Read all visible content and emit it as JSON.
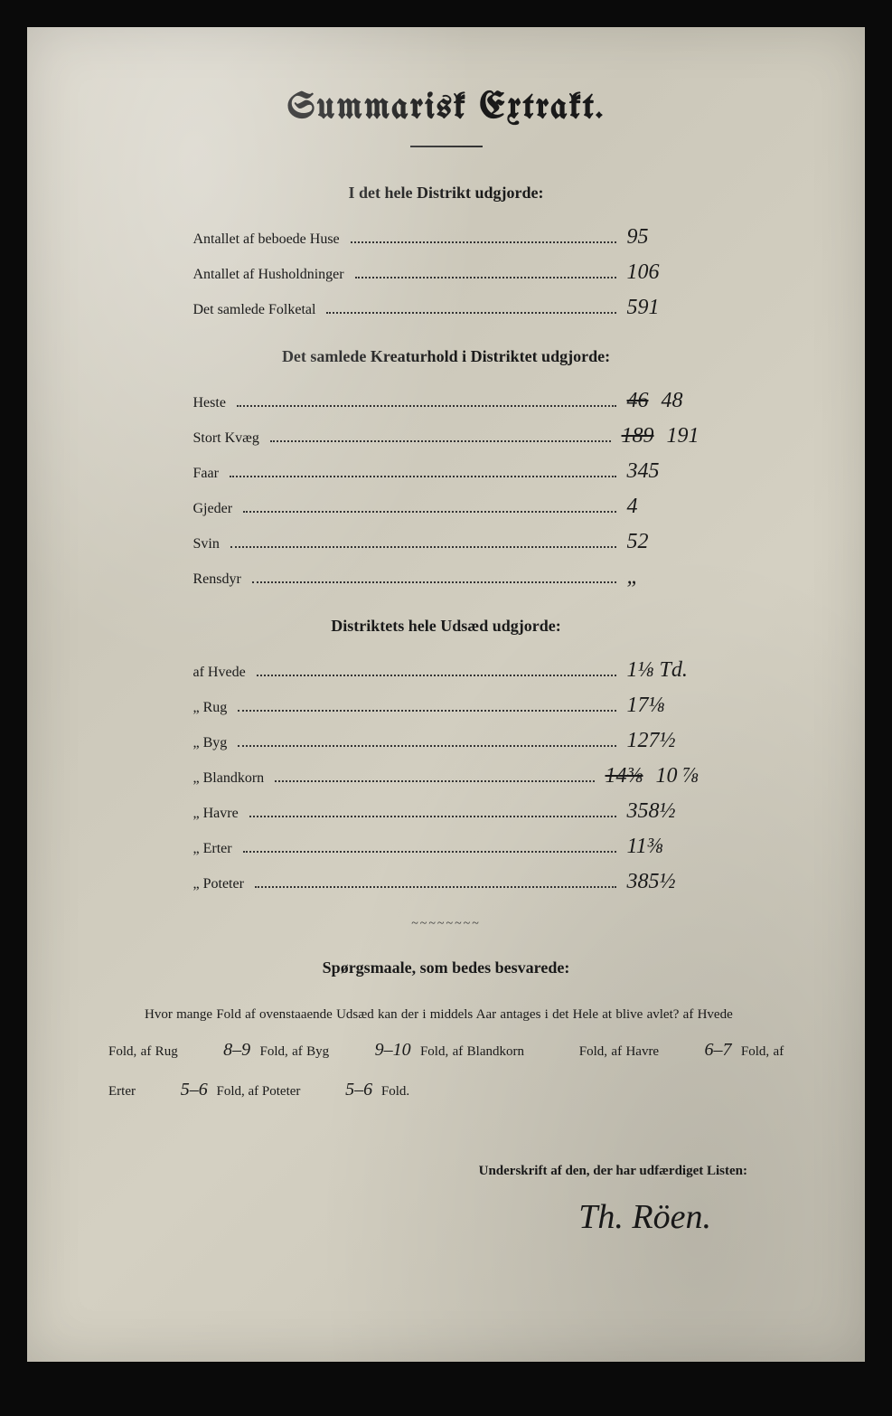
{
  "title": "Summarisk Extrakt.",
  "section1": {
    "heading": "I det hele Distrikt udgjorde:",
    "rows": [
      {
        "label": "Antallet af beboede Huse",
        "value": "95"
      },
      {
        "label": "Antallet af Husholdninger",
        "value": "106"
      },
      {
        "label": "Det samlede Folketal",
        "value": "591"
      }
    ]
  },
  "section2": {
    "heading": "Det samlede Kreaturhold i Distriktet udgjorde:",
    "rows": [
      {
        "label": "Heste",
        "value_struck": "46",
        "value": "48"
      },
      {
        "label": "Stort Kvæg",
        "value_struck": "189",
        "value": "191"
      },
      {
        "label": "Faar",
        "value": "345"
      },
      {
        "label": "Gjeder",
        "value": "4"
      },
      {
        "label": "Svin",
        "value": "52"
      },
      {
        "label": "Rensdyr",
        "value": "„"
      }
    ]
  },
  "section3": {
    "heading": "Distriktets hele Udsæd udgjorde:",
    "rows": [
      {
        "label": "af Hvede",
        "value": "1⅛ Td."
      },
      {
        "label": "„ Rug",
        "value": "17⅛"
      },
      {
        "label": "„ Byg",
        "value": "127½"
      },
      {
        "label": "„ Blandkorn",
        "value_struck": "14⅜",
        "value": "10 ⅞"
      },
      {
        "label": "„ Havre",
        "value": "358½"
      },
      {
        "label": "„ Erter",
        "value": "11⅜"
      },
      {
        "label": "„ Poteter",
        "value": "385½"
      }
    ]
  },
  "questions": {
    "heading": "Spørgsmaale, som bedes besvarede:",
    "intro": "Hvor mange Fold af ovenstaaende Udsæd kan der i middels Aar antages i det Hele at blive avlet?",
    "parts": {
      "hvede_label": "af Hvede",
      "hvede_value": "",
      "rug_label": "af Rug",
      "rug_value": "8–9",
      "byg_label": "af Byg",
      "byg_value": "9–10",
      "blandkorn_label": "af Blandkorn",
      "blandkorn_value": "",
      "havre_label": "af Havre",
      "havre_value": "6–7",
      "erter_label": "af Erter",
      "erter_value": "5–6",
      "poteter_label": "af Poteter",
      "poteter_value": "5–6",
      "fold": "Fold,"
    }
  },
  "signature": {
    "label": "Underskrift af den, der har udfærdiget Listen:",
    "name": "Th. Röen."
  }
}
